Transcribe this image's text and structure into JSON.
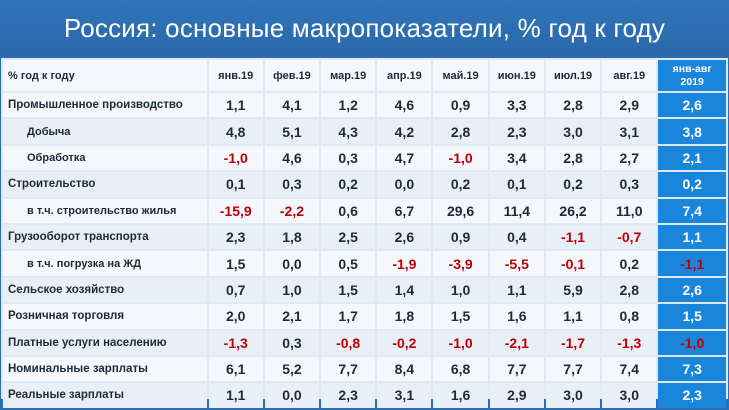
{
  "title": "Россия: основные макропоказатели, % год к году",
  "table": {
    "header_label": "% год к году",
    "months": [
      "янв.19",
      "фев.19",
      "мар.19",
      "апр.19",
      "май.19",
      "июн.19",
      "июл.19",
      "авг.19"
    ],
    "total_header_line1": "янв-авг",
    "total_header_line2": "2019",
    "rows": [
      {
        "label": "Промышленное производство",
        "sub": false,
        "values": [
          "1,1",
          "4,1",
          "1,2",
          "4,6",
          "0,9",
          "3,3",
          "2,8",
          "2,9"
        ],
        "total": "2,6"
      },
      {
        "label": "Добыча",
        "sub": true,
        "values": [
          "4,8",
          "5,1",
          "4,3",
          "4,2",
          "2,8",
          "2,3",
          "3,0",
          "3,1"
        ],
        "total": "3,8"
      },
      {
        "label": "Обработка",
        "sub": true,
        "values": [
          "-1,0",
          "4,6",
          "0,3",
          "4,7",
          "-1,0",
          "3,4",
          "2,8",
          "2,7"
        ],
        "total": "2,1"
      },
      {
        "label": "Строительство",
        "sub": false,
        "values": [
          "0,1",
          "0,3",
          "0,2",
          "0,0",
          "0,2",
          "0,1",
          "0,2",
          "0,3"
        ],
        "total": "0,2"
      },
      {
        "label": "в т.ч. строительство жилья",
        "sub": true,
        "values": [
          "-15,9",
          "-2,2",
          "0,6",
          "6,7",
          "29,6",
          "11,4",
          "26,2",
          "11,0"
        ],
        "total": "7,4"
      },
      {
        "label": "Грузооборот транспорта",
        "sub": false,
        "values": [
          "2,3",
          "1,8",
          "2,5",
          "2,6",
          "0,9",
          "0,4",
          "-1,1",
          "-0,7"
        ],
        "total": "1,1"
      },
      {
        "label": "в т.ч. погрузка на ЖД",
        "sub": true,
        "values": [
          "1,5",
          "0,0",
          "0,5",
          "-1,9",
          "-3,9",
          "-5,5",
          "-0,1",
          "0,2"
        ],
        "total": "-1,1"
      },
      {
        "label": "Сельское хозяйство",
        "sub": false,
        "values": [
          "0,7",
          "1,0",
          "1,5",
          "1,4",
          "1,0",
          "1,1",
          "5,9",
          "2,8"
        ],
        "total": "2,6"
      },
      {
        "label": "Розничная торговля",
        "sub": false,
        "values": [
          "2,0",
          "2,1",
          "1,7",
          "1,8",
          "1,5",
          "1,6",
          "1,1",
          "0,8"
        ],
        "total": "1,5"
      },
      {
        "label": "Платные услуги населению",
        "sub": false,
        "values": [
          "-1,3",
          "0,3",
          "-0,8",
          "-0,2",
          "-1,0",
          "-2,1",
          "-1,7",
          "-1,3"
        ],
        "total": "-1,0"
      },
      {
        "label": "Номинальные зарплаты",
        "sub": false,
        "values": [
          "6,1",
          "5,2",
          "7,7",
          "8,4",
          "6,8",
          "7,7",
          "7,7",
          "7,4"
        ],
        "total": "7,3"
      },
      {
        "label": "Реальные зарплаты",
        "sub": false,
        "values": [
          "1,1",
          "0,0",
          "2,3",
          "3,1",
          "1,6",
          "2,9",
          "3,0",
          "3,0"
        ],
        "total": "2,3"
      }
    ]
  },
  "colors": {
    "background": "#2b6db1",
    "total_column": "#1a86db",
    "negative": "#c00000"
  }
}
